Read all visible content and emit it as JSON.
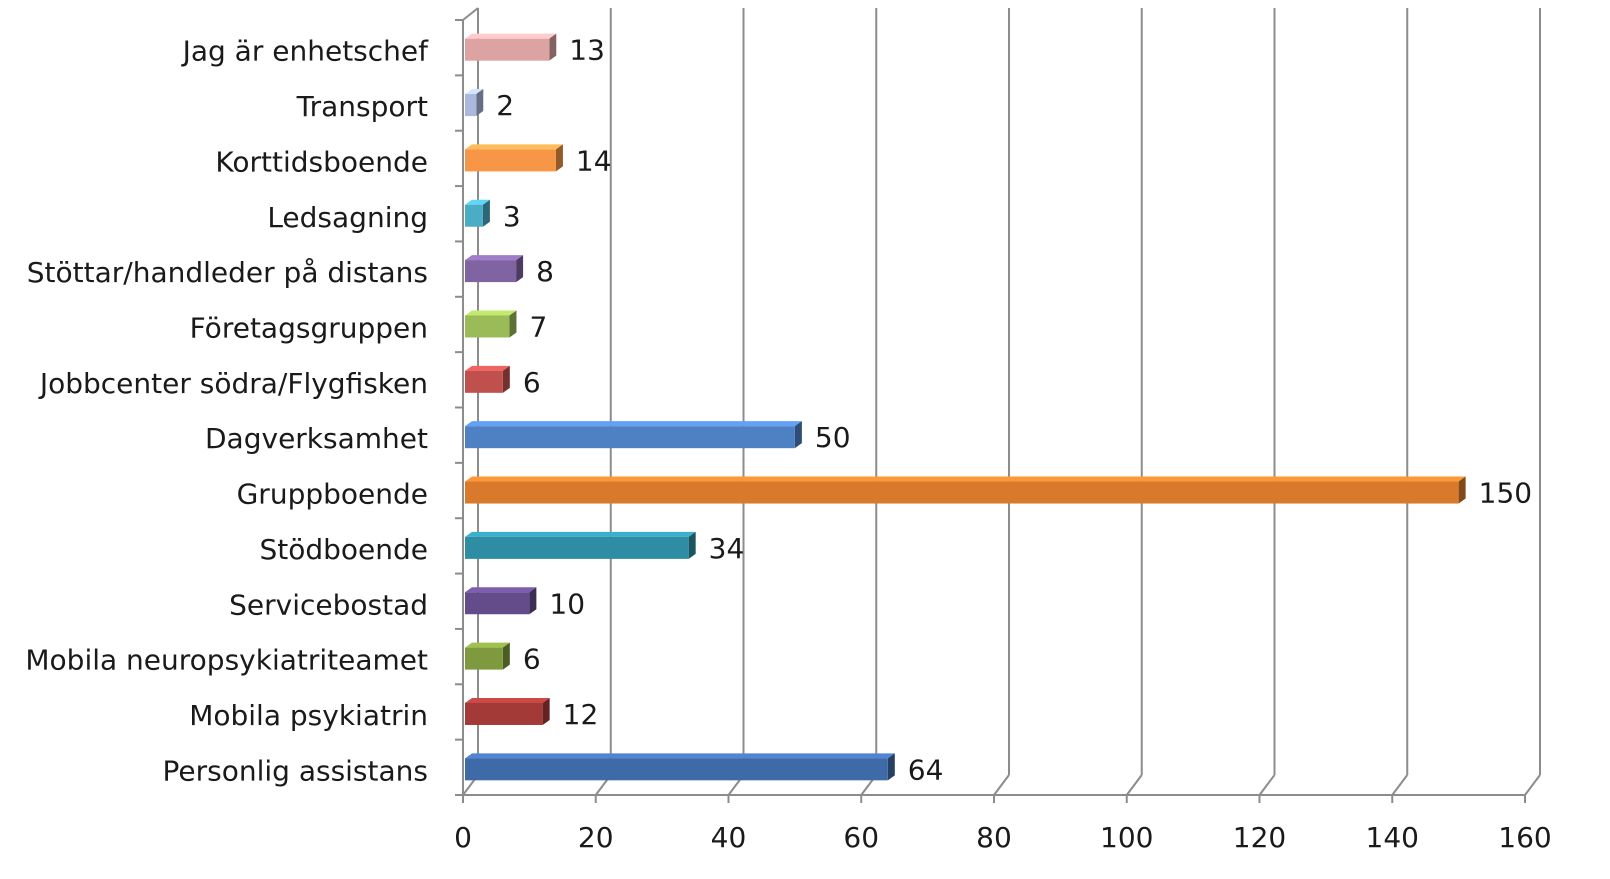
{
  "chart_data": {
    "type": "bar",
    "orientation": "horizontal",
    "style": "3d",
    "title": "",
    "xlabel": "",
    "ylabel": "",
    "xlim": [
      0,
      160
    ],
    "x_ticks": [
      0,
      20,
      40,
      60,
      80,
      100,
      120,
      140,
      160
    ],
    "grid": "vertical",
    "legend": "none",
    "categories": [
      "Personlig assistans",
      "Mobila psykiatrin",
      "Mobila neuropsykiatriteamet",
      "Servicebostad",
      "Stödboende",
      "Gruppboende",
      "Dagverksamhet",
      "Jobbcenter södra/Flygfisken",
      "Företagsgruppen",
      "Stöttar/handleder på distans",
      "Ledsagning",
      "Korttidsboende",
      "Transport",
      "Jag är enhetschef"
    ],
    "values": [
      64,
      12,
      6,
      10,
      34,
      150,
      50,
      6,
      7,
      8,
      3,
      14,
      2,
      13
    ],
    "colors": [
      "#3f6aa8",
      "#a33a38",
      "#7f9a3e",
      "#644b8a",
      "#2f8da3",
      "#d9792c",
      "#4e81c4",
      "#c0504d",
      "#9bbb59",
      "#8064a2",
      "#4bacc6",
      "#f79646",
      "#aab8dd",
      "#dca3a2"
    ]
  }
}
